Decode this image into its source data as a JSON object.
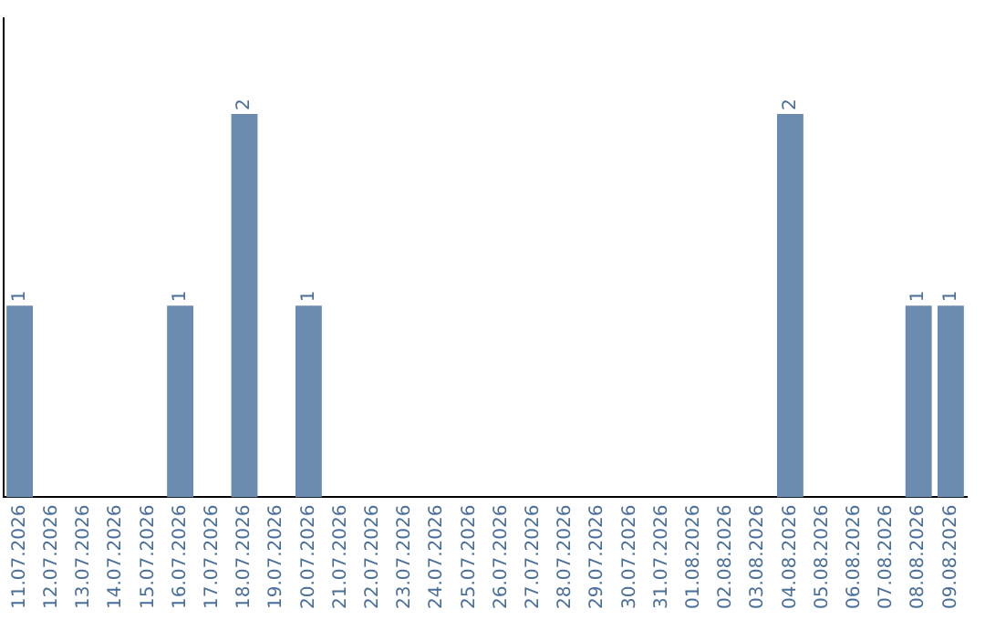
{
  "chart_data": {
    "type": "bar",
    "categories": [
      "11.07.2026",
      "12.07.2026",
      "13.07.2026",
      "14.07.2026",
      "15.07.2026",
      "16.07.2026",
      "17.07.2026",
      "18.07.2026",
      "19.07.2026",
      "20.07.2026",
      "21.07.2026",
      "22.07.2026",
      "23.07.2026",
      "24.07.2026",
      "25.07.2026",
      "26.07.2026",
      "27.07.2026",
      "28.07.2026",
      "29.07.2026",
      "30.07.2026",
      "31.07.2026",
      "01.08.2026",
      "02.08.2026",
      "03.08.2026",
      "04.08.2026",
      "05.08.2026",
      "06.08.2026",
      "07.08.2026",
      "08.08.2026",
      "09.08.2026"
    ],
    "values": [
      1,
      0,
      0,
      0,
      0,
      1,
      0,
      2,
      0,
      1,
      0,
      0,
      0,
      0,
      0,
      0,
      0,
      0,
      0,
      0,
      0,
      0,
      0,
      0,
      2,
      0,
      0,
      0,
      1,
      1
    ],
    "value_labels": [
      "1",
      null,
      null,
      null,
      null,
      "1",
      null,
      "2",
      null,
      "1",
      null,
      null,
      null,
      null,
      null,
      null,
      null,
      null,
      null,
      null,
      null,
      null,
      null,
      null,
      "2",
      null,
      null,
      null,
      "1",
      "1"
    ],
    "color": "#6b8cae",
    "grid": false,
    "legend": false,
    "tick_labels": "x"
  }
}
